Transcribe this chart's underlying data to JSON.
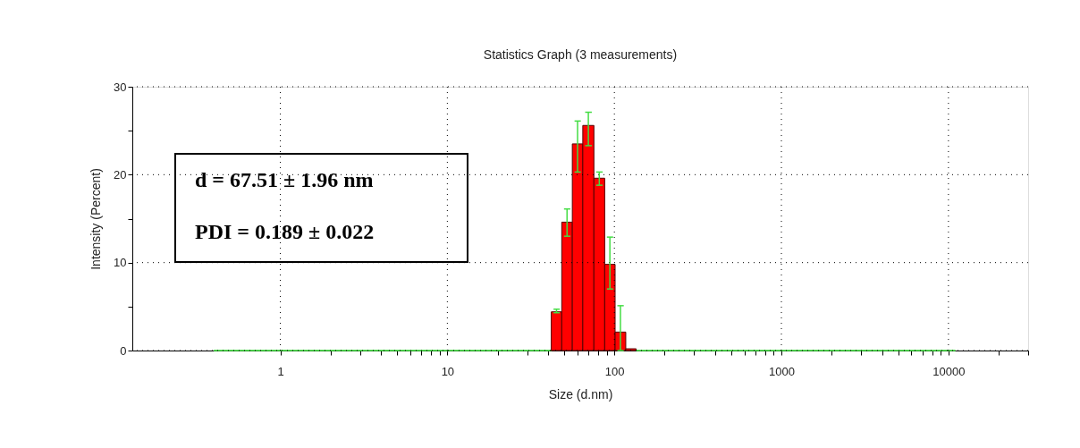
{
  "chart_data": {
    "type": "histogram",
    "title": "Statistics Graph (3 measurements)",
    "xlabel": "Size (d.nm)",
    "ylabel": "Intensity (Percent)",
    "log": "x",
    "grid": true,
    "bins": [
      0.4,
      41.9,
      48.4,
      56,
      64.7,
      75.4,
      87.5,
      101,
      117,
      135,
      11000
    ],
    "values": [
      0,
      4.4,
      14.6,
      23.5,
      25.6,
      19.6,
      9.8,
      2.1,
      0.2,
      0
    ],
    "colors": [
      "#33dd33",
      "#ff0000",
      "#ff0000",
      "#ff0000",
      "#ff0000",
      "#ff0000",
      "#ff0000",
      "#ff0000",
      "#ff0000",
      "#33dd33"
    ],
    "errors": [
      null,
      [
        4.3,
        4.7
      ],
      [
        13.0,
        16.1
      ],
      [
        20.3,
        26.1
      ],
      [
        23.3,
        27.1
      ],
      [
        18.8,
        20.3
      ],
      [
        7.0,
        12.9
      ],
      [
        0,
        5.1
      ],
      null,
      null
    ],
    "xlim": [
      0.13,
      30000
    ],
    "xticks": [
      1,
      {
        "value": 2,
        "label": null
      },
      {
        "value": 3,
        "label": null
      },
      {
        "value": 4,
        "label": null
      },
      {
        "value": 5,
        "label": null
      },
      {
        "value": 6,
        "label": null
      },
      {
        "value": 7,
        "label": null
      },
      {
        "value": 8,
        "label": null
      },
      {
        "value": 9,
        "label": null
      },
      10,
      {
        "value": 20,
        "label": null
      },
      {
        "value": 30,
        "label": null
      },
      {
        "value": 40,
        "label": null
      },
      {
        "value": 50,
        "label": null
      },
      {
        "value": 60,
        "label": null
      },
      {
        "value": 70,
        "label": null
      },
      {
        "value": 80,
        "label": null
      },
      {
        "value": 90,
        "label": null
      },
      100,
      {
        "value": 200,
        "label": null
      },
      {
        "value": 300,
        "label": null
      },
      {
        "value": 400,
        "label": null
      },
      {
        "value": 500,
        "label": null
      },
      {
        "value": 600,
        "label": null
      },
      {
        "value": 700,
        "label": null
      },
      {
        "value": 800,
        "label": null
      },
      {
        "value": 900,
        "label": null
      },
      1000,
      {
        "value": 2000,
        "label": null
      },
      {
        "value": 3000,
        "label": null
      },
      {
        "value": 4000,
        "label": null
      },
      {
        "value": 5000,
        "label": null
      },
      {
        "value": 6000,
        "label": null
      },
      {
        "value": 7000,
        "label": null
      },
      {
        "value": 8000,
        "label": null
      },
      {
        "value": 9000,
        "label": null
      },
      10000,
      {
        "value": 20000,
        "label": null
      },
      {
        "value": 30000,
        "label": null
      }
    ],
    "ylim": [
      0,
      30
    ],
    "yticks": [
      0,
      {
        "value": 5,
        "label": null
      },
      10,
      {
        "value": 15,
        "label": null
      },
      20,
      {
        "value": 25,
        "label": null
      },
      30
    ],
    "annotations": [
      "d = 67.51 ± 1.96 nm",
      "PDI = 0.189 ± 0.022"
    ]
  }
}
